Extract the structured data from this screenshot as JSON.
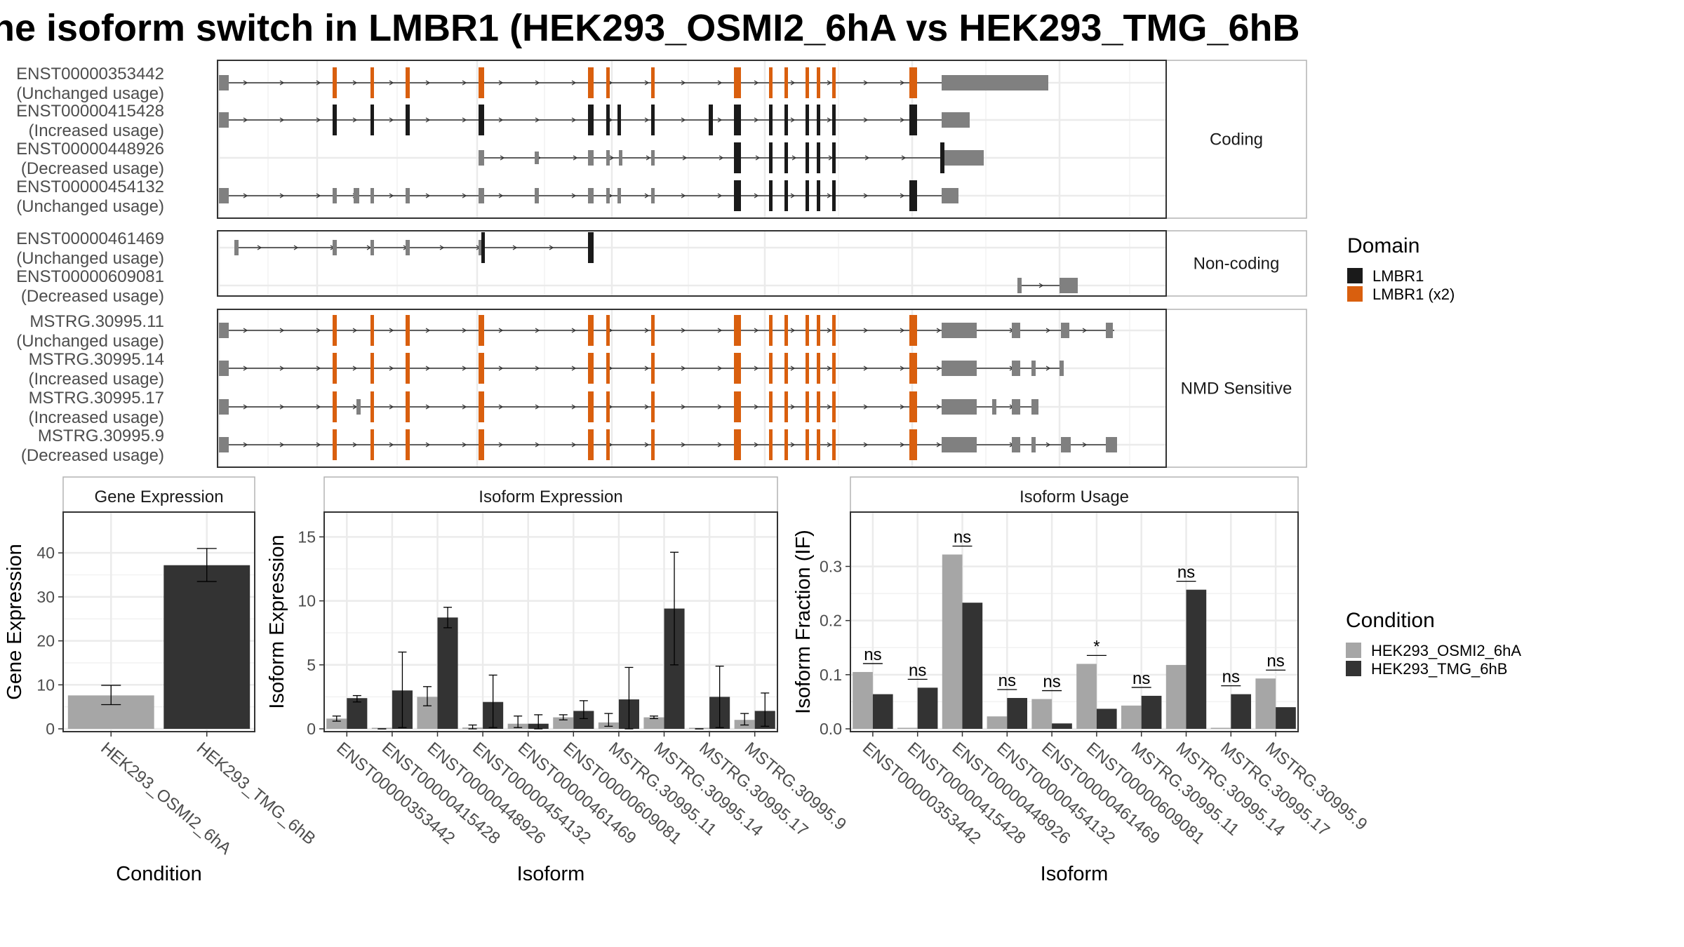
{
  "title": "he isoform switch in LMBR1 (HEK293_OSMI2_6hA vs HEK293_TMG_6hB",
  "structure": {
    "panels": [
      {
        "label": "Coding",
        "transcripts": [
          {
            "id": "ENST00000353442",
            "status": "(Unchanged usage)"
          },
          {
            "id": "ENST00000415428",
            "status": "(Increased usage)"
          },
          {
            "id": "ENST00000448926",
            "status": "(Decreased usage)"
          },
          {
            "id": "ENST00000454132",
            "status": "(Unchanged usage)"
          }
        ]
      },
      {
        "label": "Non-coding",
        "transcripts": [
          {
            "id": "ENST00000461469",
            "status": "(Unchanged usage)"
          },
          {
            "id": "ENST00000609081",
            "status": "(Decreased usage)"
          }
        ]
      },
      {
        "label": "NMD Sensitive",
        "transcripts": [
          {
            "id": "MSTRG.30995.11",
            "status": "(Unchanged usage)"
          },
          {
            "id": "MSTRG.30995.14",
            "status": "(Increased usage)"
          },
          {
            "id": "MSTRG.30995.17",
            "status": "(Increased usage)"
          },
          {
            "id": "MSTRG.30995.9",
            "status": "(Decreased usage)"
          }
        ]
      }
    ]
  },
  "legends": {
    "domain": {
      "title": "Domain",
      "items": [
        {
          "label": "LMBR1",
          "color": "#1a1a1a"
        },
        {
          "label": "LMBR1 (x2)",
          "color": "#d95f0e"
        }
      ]
    },
    "condition": {
      "title": "Condition",
      "items": [
        {
          "label": "HEK293_OSMI2_6hA",
          "color": "#a6a6a6"
        },
        {
          "label": "HEK293_TMG_6hB",
          "color": "#333333"
        }
      ]
    }
  },
  "colors": {
    "exon": "#808080",
    "coding": "#1a1a1a",
    "domain_x2": "#d95f0e",
    "condA": "#a6a6a6",
    "condB": "#333333"
  },
  "chart_data": [
    {
      "type": "bar",
      "title": "Gene Expression",
      "xlabel": "Condition",
      "ylabel": "Gene Expression",
      "categories": [
        "HEK293_OSMI2_6hA",
        "HEK293_TMG_6hB"
      ],
      "values": [
        7.6,
        37.2
      ],
      "error_low": [
        5.5,
        33.5
      ],
      "error_high": [
        9.9,
        41.0
      ],
      "ylim": [
        0,
        48
      ],
      "yticks": [
        0,
        10,
        20,
        30,
        40
      ]
    },
    {
      "type": "bar",
      "title": "Isoform Expression",
      "xlabel": "Isoform",
      "ylabel": "Isoform Expression",
      "categories": [
        "ENST00000353442",
        "ENST00000415428",
        "ENST00000448926",
        "ENST00000454132",
        "ENST00000461469",
        "ENST00000609081",
        "MSTRG.30995.11",
        "MSTRG.30995.14",
        "MSTRG.30995.17",
        "MSTRG.30995.9"
      ],
      "series": [
        {
          "name": "HEK293_OSMI2_6hA",
          "values": [
            0.8,
            0.0,
            2.5,
            0.1,
            0.4,
            0.9,
            0.5,
            0.9,
            0.0,
            0.7
          ],
          "error_low": [
            0.6,
            0.0,
            1.8,
            0.0,
            0.1,
            0.7,
            0.2,
            0.8,
            0.0,
            0.3
          ],
          "error_high": [
            1.0,
            0.0,
            3.3,
            0.3,
            1.0,
            1.1,
            1.2,
            1.0,
            0.0,
            1.2
          ]
        },
        {
          "name": "HEK293_TMG_6hB",
          "values": [
            2.4,
            3.0,
            8.7,
            2.1,
            0.4,
            1.4,
            2.3,
            9.4,
            2.5,
            1.4
          ],
          "error_low": [
            2.1,
            0.1,
            7.9,
            0.1,
            0.0,
            0.8,
            0.0,
            5.0,
            0.1,
            0.2
          ],
          "error_high": [
            2.6,
            6.0,
            9.5,
            4.2,
            1.1,
            2.2,
            4.8,
            13.8,
            4.9,
            2.8
          ]
        }
      ],
      "ylim": [
        0,
        16.5
      ],
      "yticks": [
        0,
        5,
        10,
        15
      ]
    },
    {
      "type": "bar",
      "title": "Isoform Usage",
      "xlabel": "Isoform",
      "ylabel": "Isoform Fraction (IF)",
      "categories": [
        "ENST00000353442",
        "ENST00000415428",
        "ENST00000448926",
        "ENST00000454132",
        "ENST00000461469",
        "ENST00000609081",
        "MSTRG.30995.11",
        "MSTRG.30995.14",
        "MSTRG.30995.17",
        "MSTRG.30995.9"
      ],
      "series": [
        {
          "name": "HEK293_OSMI2_6hA",
          "values": [
            0.105,
            0.0,
            0.322,
            0.023,
            0.055,
            0.12,
            0.043,
            0.118,
            0.0,
            0.093
          ]
        },
        {
          "name": "HEK293_TMG_6hB",
          "values": [
            0.064,
            0.076,
            0.233,
            0.057,
            0.01,
            0.037,
            0.061,
            0.257,
            0.064,
            0.04
          ]
        }
      ],
      "significance": [
        "ns",
        "ns",
        "ns",
        "ns",
        "ns",
        "*",
        "ns",
        "ns",
        "ns",
        "ns"
      ],
      "ylim": [
        0,
        0.39
      ],
      "yticks": [
        0.0,
        0.1,
        0.2,
        0.3
      ]
    }
  ]
}
